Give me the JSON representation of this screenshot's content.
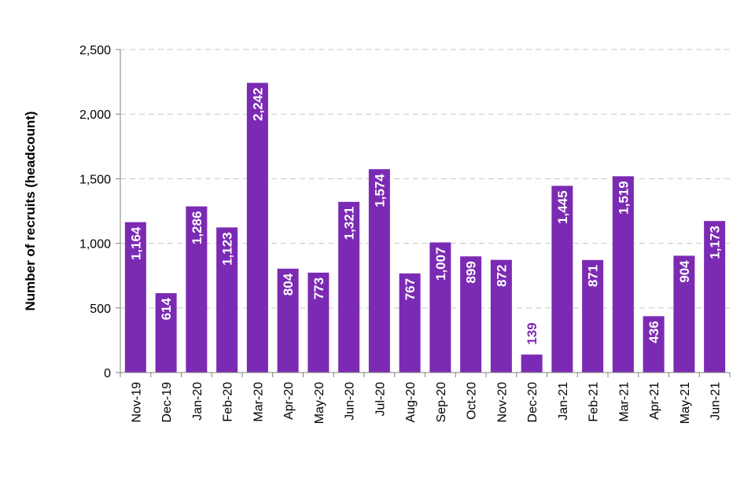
{
  "chart_data": {
    "type": "bar",
    "title": "",
    "xlabel": "",
    "ylabel": "Number of recruits (headcount)",
    "ylim": [
      0,
      2500
    ],
    "yticks": [
      0,
      500,
      1000,
      1500,
      2000,
      2500
    ],
    "ytick_labels": [
      "0",
      "500",
      "1,000",
      "1,500",
      "2,000",
      "2,500"
    ],
    "grid": "horizontal dashed",
    "legend": "none",
    "categories": [
      "Nov-19",
      "Dec-19",
      "Jan-20",
      "Feb-20",
      "Mar-20",
      "Apr-20",
      "May-20",
      "Jun-20",
      "Jul-20",
      "Aug-20",
      "Sep-20",
      "Oct-20",
      "Nov-20",
      "Dec-20",
      "Jan-21",
      "Feb-21",
      "Mar-21",
      "Apr-21",
      "May-21",
      "Jun-21"
    ],
    "values": [
      1164,
      614,
      1286,
      1123,
      2242,
      804,
      773,
      1321,
      1574,
      767,
      1007,
      899,
      872,
      139,
      1445,
      871,
      1519,
      436,
      904,
      1173
    ],
    "value_labels": [
      "1,164",
      "614",
      "1,286",
      "1,123",
      "2,242",
      "804",
      "773",
      "1,321",
      "1,574",
      "767",
      "1,007",
      "899",
      "872",
      "139",
      "1,445",
      "871",
      "1,519",
      "436",
      "904",
      "1,173"
    ],
    "colors": {
      "bar": "#7B2BB3",
      "label_inside": "#FFFFFF",
      "label_outside": "#7B2BB3",
      "grid": "#C8C8C8",
      "axis": "#808080"
    }
  }
}
